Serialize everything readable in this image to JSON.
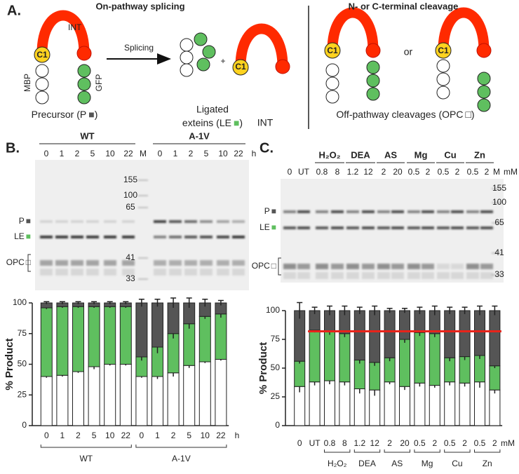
{
  "panel_a": {
    "label": "A.",
    "title_left": "On-pathway splicing",
    "title_right": "N- or C-terminal cleavage",
    "int": "INT",
    "c1": "C1",
    "mbp": "MBP",
    "gfp": "GFP",
    "precursor": [
      "Precursor (P",
      "■",
      ")"
    ],
    "splicing": "Splicing",
    "plus": "+",
    "ligated": [
      "Ligated",
      "exteins (LE",
      "■",
      ")"
    ],
    "or": "or",
    "opc": [
      "Off-pathway cleavages (OPC",
      "□",
      ")"
    ]
  },
  "gel_b": {
    "label": "B.",
    "groups": [
      "WT",
      "A-1V"
    ],
    "lanes": [
      "0",
      "1",
      "2",
      "5",
      "10",
      "22",
      "M",
      "0",
      "1",
      "2",
      "5",
      "10",
      "22"
    ],
    "unit": "h",
    "markers": [
      "155",
      "100",
      "65",
      "41",
      "33"
    ],
    "bands": [
      [
        "P",
        "■"
      ],
      [
        "LE",
        "■"
      ],
      [
        "OPC",
        "□"
      ]
    ]
  },
  "gel_c": {
    "label": "C.",
    "groups": [
      "H₂O₂",
      "DEA",
      "AS",
      "Mg",
      "Cu",
      "Zn"
    ],
    "lanes": [
      "0",
      "UT",
      "0.8",
      "8",
      "1.2",
      "12",
      "2",
      "20",
      "0.5",
      "2",
      "0.5",
      "2",
      "0.5",
      "2",
      "M"
    ],
    "unit": "mM",
    "markers": [
      "155",
      "100",
      "65",
      "41",
      "33"
    ],
    "bands": [
      [
        "P",
        "■"
      ],
      [
        "LE",
        "■"
      ],
      [
        "OPC",
        "□"
      ]
    ]
  },
  "chart_data": [
    {
      "type": "stacked_bar",
      "ylabel": "% Product",
      "x_unit": "h",
      "groups": [
        {
          "name": "WT",
          "categories": [
            "0",
            "1",
            "2",
            "5",
            "10",
            "22"
          ]
        },
        {
          "name": "A-1V",
          "categories": [
            "0",
            "1",
            "2",
            "5",
            "10",
            "22"
          ]
        }
      ],
      "ylim": [
        0,
        100
      ],
      "yticks": [
        0,
        25,
        50,
        75,
        100
      ],
      "series": [
        {
          "color": "#ffffff",
          "values": [
            40,
            41,
            44,
            48,
            50,
            50,
            40,
            40,
            43,
            49,
            52,
            54
          ],
          "errors": [
            1,
            1,
            1,
            2,
            1,
            1,
            1,
            2,
            3,
            2,
            1,
            1
          ]
        },
        {
          "color": "#5fbf5f",
          "values": [
            56,
            56,
            53,
            49,
            47,
            47,
            16,
            24,
            32,
            34,
            37,
            37
          ],
          "errors": [
            1,
            1,
            1,
            1,
            1,
            1,
            3,
            5,
            4,
            4,
            2,
            3
          ]
        },
        {
          "color": "#555555",
          "values": [
            4,
            3,
            3,
            3,
            3,
            3,
            44,
            36,
            25,
            17,
            11,
            9
          ],
          "errors": [
            1,
            1,
            1,
            1,
            1,
            1,
            3,
            3,
            4,
            4,
            3,
            2
          ]
        }
      ]
    },
    {
      "type": "stacked_bar",
      "ylabel": "% Product",
      "x_unit": "mM",
      "groups": [
        {
          "name": null,
          "categories": [
            "0",
            "UT"
          ]
        },
        {
          "name": "H₂O₂",
          "categories": [
            "0.8",
            "8"
          ]
        },
        {
          "name": "DEA",
          "categories": [
            "1.2",
            "12"
          ]
        },
        {
          "name": "AS",
          "categories": [
            "2",
            "20"
          ]
        },
        {
          "name": "Mg",
          "categories": [
            "0.5",
            "2"
          ]
        },
        {
          "name": "Cu",
          "categories": [
            "0.5",
            "2"
          ]
        },
        {
          "name": "Zn",
          "categories": [
            "0.5",
            "2"
          ]
        }
      ],
      "ylim": [
        0,
        100
      ],
      "yticks": [
        0,
        25,
        50,
        75,
        100
      ],
      "series": [
        {
          "color": "#ffffff",
          "values": [
            34,
            38,
            39,
            38,
            32,
            31,
            38,
            34,
            37,
            35,
            38,
            37,
            38,
            31
          ],
          "errors": [
            5,
            3,
            3,
            3,
            4,
            5,
            2,
            3,
            3,
            2,
            3,
            3,
            5,
            3
          ]
        },
        {
          "color": "#5fbf5f",
          "values": [
            22,
            45,
            43,
            42,
            25,
            24,
            21,
            41,
            44,
            45,
            21,
            23,
            23,
            21
          ],
          "errors": [
            2,
            2,
            3,
            3,
            3,
            3,
            3,
            3,
            3,
            3,
            3,
            3,
            3,
            2
          ]
        },
        {
          "color": "#555555",
          "values": [
            44,
            17,
            18,
            20,
            43,
            45,
            41,
            25,
            19,
            20,
            41,
            40,
            39,
            48
          ],
          "errors": [
            7,
            3,
            4,
            4,
            3,
            4,
            2,
            2,
            3,
            4,
            3,
            3,
            4,
            4
          ]
        }
      ],
      "reference_line": 82,
      "reference_color": "#e8231a"
    }
  ]
}
